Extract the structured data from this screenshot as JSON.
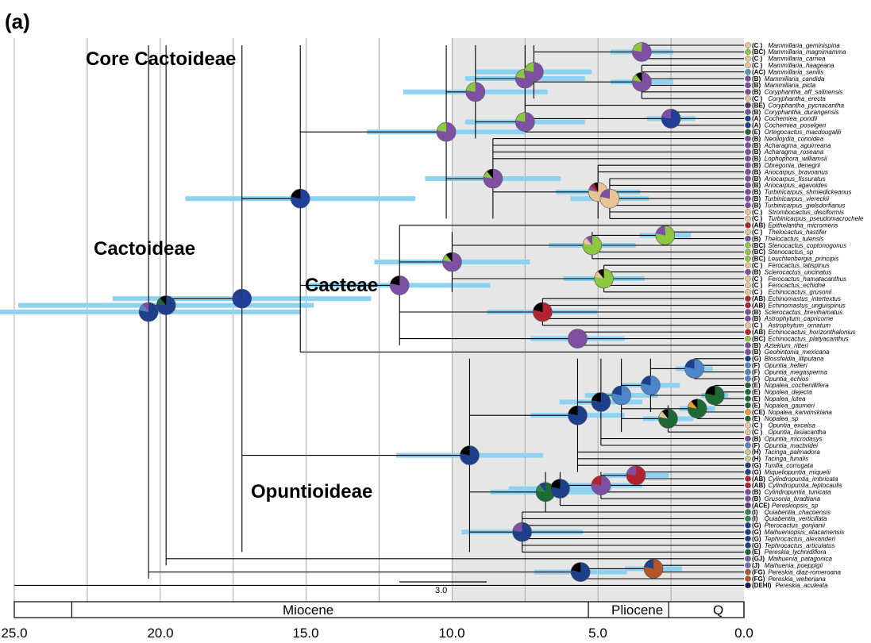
{
  "panel_label": "(a)",
  "clade_labels": [
    "Core Cactoideae",
    "Cactoideae",
    "Cacteae",
    "Opuntioideae"
  ],
  "timescale": {
    "epochs": [
      "Miocene",
      "Pliocene",
      "Q"
    ],
    "epoch_boundaries_ma": [
      23.03,
      5.33,
      2.58,
      0.0
    ],
    "ticks": [
      "25.0",
      "20.0",
      "15.0",
      "10.0",
      "5.0",
      "0.0"
    ],
    "tick_values_ma": [
      25,
      20,
      15,
      10,
      5,
      0
    ],
    "gridlines_ma": [
      25,
      22.5,
      20,
      17.5,
      15,
      12.5,
      10,
      7.5,
      5,
      2.5
    ],
    "shaded_range_ma": [
      10,
      0
    ]
  },
  "scale_bar": {
    "label": "3.0",
    "length_ma": 3.0
  },
  "colors": {
    "A": "#1f3f99",
    "B": "#7e4fa3",
    "C": "#e8c395",
    "E": "#1e6a35",
    "F": "#4a86c8",
    "G": "#1e3f8a",
    "H": "#c9c98a",
    "I": "#2a8a4a",
    "J": "#7a6fb0",
    "D": "#1a1f5c",
    "K": "#8dc63f",
    "M": "#b22230",
    "N": "#b5562a",
    "O": "#f39a2b",
    "X": "#000000",
    "hpd_bar": "#8ed2f2",
    "shade": "#e6e6e6",
    "grid": "#a8a8a8"
  },
  "tips": [
    {
      "code": "(C )",
      "name": "Mammillaria_geminispina",
      "color": "#e8c395"
    },
    {
      "code": "(BC)",
      "name": "Mammillaria_magnimamma",
      "color": "#8dc63f"
    },
    {
      "code": "(C )",
      "name": "Mammillaria_carnea",
      "color": "#e8c395"
    },
    {
      "code": "(C )",
      "name": "Mammillaria_haageana",
      "color": "#e8c395"
    },
    {
      "code": "(AC)",
      "name": "Mammillaria_senilis",
      "color": "#4aa0a0"
    },
    {
      "code": "(B)",
      "name": "Mammillaria_candida",
      "color": "#7e4fa3"
    },
    {
      "code": "(B)",
      "name": "Mammillaria_picta",
      "color": "#7e4fa3"
    },
    {
      "code": "(B)",
      "name": "Coryphantha_aff_salinensis",
      "color": "#7e4fa3"
    },
    {
      "code": "(C )",
      "name": "Coryphantha_erecta",
      "color": "#e8c395"
    },
    {
      "code": "(BE)",
      "name": "Coryphantha_pycnacantha",
      "color": "#5a3a6a"
    },
    {
      "code": "(B)",
      "name": "Coryphantha_durangensis",
      "color": "#7e4fa3"
    },
    {
      "code": "(A)",
      "name": "Cochemiea_pondii",
      "color": "#1f3f99"
    },
    {
      "code": "(A)",
      "name": "Cochemiea_poselgeri",
      "color": "#1f3f99"
    },
    {
      "code": "(E)",
      "name": "Ortegocactus_macdougallii",
      "color": "#1e6a35"
    },
    {
      "code": "(B)",
      "name": "Neolloydia_conoidea",
      "color": "#7e4fa3"
    },
    {
      "code": "(B)",
      "name": "Acharagma_aguirreana",
      "color": "#7e4fa3"
    },
    {
      "code": "(B)",
      "name": "Acharagma_roseana",
      "color": "#7e4fa3"
    },
    {
      "code": "(B)",
      "name": "Lophophora_williamsii",
      "color": "#7e4fa3"
    },
    {
      "code": "(B)",
      "name": "Obregonia_denegrii",
      "color": "#7e4fa3"
    },
    {
      "code": "(B)",
      "name": "Ariocarpus_bravoanus",
      "color": "#7e4fa3"
    },
    {
      "code": "(B)",
      "name": "Ariocarpus_fissuratus",
      "color": "#7e4fa3"
    },
    {
      "code": "(B)",
      "name": "Ariocarpus_agavoides",
      "color": "#7e4fa3"
    },
    {
      "code": "(B)",
      "name": "Turbinicarpus_shmiedickeanus",
      "color": "#7e4fa3"
    },
    {
      "code": "(B)",
      "name": "Turbinicarpus_viereckii",
      "color": "#7e4fa3"
    },
    {
      "code": "(B)",
      "name": "Turbinicarpus_gielsdorfianus",
      "color": "#7e4fa3"
    },
    {
      "code": "(C )",
      "name": "Strombocactus_disciformis",
      "color": "#e8c395"
    },
    {
      "code": "(C )",
      "name": "Turbinicarpus_pseudomacrochele",
      "color": "#e8c395"
    },
    {
      "code": "(AB)",
      "name": "Epithelantha_micromeris",
      "color": "#b22230"
    },
    {
      "code": "(C )",
      "name": "Thelocactus_hastifer",
      "color": "#e8c395"
    },
    {
      "code": "(B)",
      "name": "Thelocactus_tulensis",
      "color": "#7e4fa3"
    },
    {
      "code": "(BC)",
      "name": "Stenocactus_coptonogonus",
      "color": "#8dc63f"
    },
    {
      "code": "(BC)",
      "name": "Stenocactus_sp",
      "color": "#8dc63f"
    },
    {
      "code": "(BC)",
      "name": "Leuchtenbergia_principis",
      "color": "#8dc63f"
    },
    {
      "code": "(C )",
      "name": "Ferocactus_latispinus",
      "color": "#e8c395"
    },
    {
      "code": "(B)",
      "name": "Sclerocactus_uncinatus",
      "color": "#7e4fa3"
    },
    {
      "code": "(C )",
      "name": "Ferocactus_hamatacanthus",
      "color": "#e8c395"
    },
    {
      "code": "(C )",
      "name": "Ferocactus_echidne",
      "color": "#e8c395"
    },
    {
      "code": "(C )",
      "name": "Echinocactus_grusonii",
      "color": "#e8c395"
    },
    {
      "code": "(AB)",
      "name": "Echinomastus_intertextus",
      "color": "#b22230"
    },
    {
      "code": "(AB)",
      "name": "Echinomastus_unguispinus",
      "color": "#b22230"
    },
    {
      "code": "(B)",
      "name": "Sclerocactus_brevihamatus",
      "color": "#7e4fa3"
    },
    {
      "code": "(B)",
      "name": "Astrophytum_capricorne",
      "color": "#7e4fa3"
    },
    {
      "code": "(C )",
      "name": "Astrophytum_ornatum",
      "color": "#e8c395"
    },
    {
      "code": "(AB)",
      "name": "Echinocactus_horizonthalonius",
      "color": "#b22230"
    },
    {
      "code": "(BC)",
      "name": "Echinocactus_platyacanthus",
      "color": "#8dc63f"
    },
    {
      "code": "(B)",
      "name": "Aztekium_ritteri",
      "color": "#7e4fa3"
    },
    {
      "code": "(B)",
      "name": "Geohintonia_mexicana",
      "color": "#7e4fa3"
    },
    {
      "code": "(G)",
      "name": "Blossfeldia_liliputana",
      "color": "#1e3f8a"
    },
    {
      "code": "(F)",
      "name": "Opuntia_helleri",
      "color": "#4a86c8"
    },
    {
      "code": "(F)",
      "name": "Opuntia_megasperma",
      "color": "#4a86c8"
    },
    {
      "code": "(F)",
      "name": "Opuntia_echios",
      "color": "#4a86c8"
    },
    {
      "code": "(E)",
      "name": "Nopalea_cochenillifera",
      "color": "#1e6a35"
    },
    {
      "code": "(E)",
      "name": "Nopalea_dejecta",
      "color": "#1e6a35"
    },
    {
      "code": "(E)",
      "name": "Nopalea_lutea",
      "color": "#1e6a35"
    },
    {
      "code": "(E)",
      "name": "Nopalea_gaumeri",
      "color": "#1e6a35"
    },
    {
      "code": "(CE)",
      "name": "Nopalea_karwinskiana",
      "color": "#f39a2b"
    },
    {
      "code": "(E)",
      "name": "Nopalea_sp",
      "color": "#1e6a35"
    },
    {
      "code": "(C )",
      "name": "Opuntia_excelsa",
      "color": "#e8c395"
    },
    {
      "code": "(C )",
      "name": "Opuntia_lasiacantha",
      "color": "#e8c395"
    },
    {
      "code": "(B)",
      "name": "Opuntia_microdasys",
      "color": "#7e4fa3"
    },
    {
      "code": "(F)",
      "name": "Opuntia_macbridei",
      "color": "#4a86c8"
    },
    {
      "code": "(H)",
      "name": "Tacinga_palmadora",
      "color": "#c9c98a"
    },
    {
      "code": "(H)",
      "name": "Tacinga_funalis",
      "color": "#c9c98a"
    },
    {
      "code": "(G)",
      "name": "Tunilla_corrugata",
      "color": "#1e3f8a"
    },
    {
      "code": "(G)",
      "name": "Miqueliopuntia_miquelii",
      "color": "#1e3f8a"
    },
    {
      "code": "(AB)",
      "name": "Cylindropuntia_imbricata",
      "color": "#b22230"
    },
    {
      "code": "(AB)",
      "name": "Cylindropuntia_leptocaulis",
      "color": "#b22230"
    },
    {
      "code": "(B)",
      "name": "Cylindropuntia_tunicata",
      "color": "#7e4fa3"
    },
    {
      "code": "(B)",
      "name": "Grusonia_bradtiana",
      "color": "#7e4fa3"
    },
    {
      "code": "(ACE)",
      "name": "Pereskiopsis_sp",
      "color": "#6a3a8a"
    },
    {
      "code": "(I)",
      "name": "Quiabentia_chacoensis",
      "color": "#2a8a4a"
    },
    {
      "code": "(I)",
      "name": "Quiabentia_verticillata",
      "color": "#2a8a4a"
    },
    {
      "code": "(G)",
      "name": "Pterocactus_gonjianii",
      "color": "#1e3f8a"
    },
    {
      "code": "(G)",
      "name": "Maihueniopsis_atacamensis",
      "color": "#1e3f8a"
    },
    {
      "code": "(G)",
      "name": "Tephrocactus_alexanderi",
      "color": "#1e3f8a"
    },
    {
      "code": "(G)",
      "name": "Tephrocactus_articulatus",
      "color": "#1e3f8a"
    },
    {
      "code": "(E)",
      "name": "Pereskia_lychnidiflora",
      "color": "#1e6a35"
    },
    {
      "code": "(GJ)",
      "name": "Maihuenia_patagonica",
      "color": "#6a6aa8"
    },
    {
      "code": "(J)",
      "name": "Maihuenia_poeppigii",
      "color": "#7a6fb0"
    },
    {
      "code": "(FG)",
      "name": "Pereskia_diaz-romeroana",
      "color": "#b5562a"
    },
    {
      "code": "(FG)",
      "name": "Pereskia_weberiana",
      "color": "#b5562a"
    },
    {
      "code": "(DEHI)",
      "name": "Pereskia_aculeata",
      "color": "#1a1f5c"
    }
  ],
  "nodes": [
    {
      "age": 20.4,
      "colors": [
        "#1e3f8a",
        "#4a86c8",
        "#7e4fa3"
      ]
    },
    {
      "age": 19.8,
      "colors": [
        "#1e3f8a",
        "#1e6a35",
        "#000000"
      ]
    },
    {
      "age": 17.2,
      "colors": [
        "#1f3f99",
        "#1e3f8a"
      ]
    },
    {
      "age": 15.2,
      "colors": [
        "#1f3f99",
        "#000000"
      ]
    },
    {
      "age": 11.8,
      "colors": [
        "#7e4fa3",
        "#000000"
      ]
    },
    {
      "age": 10.2,
      "colors": [
        "#7e4fa3",
        "#8dc63f"
      ]
    },
    {
      "age": 10.0,
      "colors": [
        "#7e4fa3",
        "#8dc63f",
        "#000000"
      ]
    },
    {
      "age": 9.2,
      "colors": [
        "#7e4fa3",
        "#8dc63f"
      ]
    },
    {
      "age": 8.6,
      "colors": [
        "#7e4fa3",
        "#8dc63f",
        "#000000"
      ]
    },
    {
      "age": 7.5,
      "colors": [
        "#7e4fa3",
        "#8dc63f"
      ]
    },
    {
      "age": 7.5,
      "colors": [
        "#7e4fa3",
        "#8dc63f"
      ]
    },
    {
      "age": 7.2,
      "colors": [
        "#7e4fa3",
        "#8dc63f"
      ]
    },
    {
      "age": 6.9,
      "colors": [
        "#b22230",
        "#000000"
      ]
    },
    {
      "age": 5.7,
      "colors": [
        "#7e4fa3"
      ]
    },
    {
      "age": 5.2,
      "colors": [
        "#8dc63f",
        "#e8c395",
        "#7e4fa3"
      ]
    },
    {
      "age": 5.0,
      "colors": [
        "#e8c395",
        "#7e4fa3",
        "#b22230",
        "#000000"
      ]
    },
    {
      "age": 4.8,
      "colors": [
        "#8dc63f",
        "#e8c395",
        "#000000"
      ]
    },
    {
      "age": 4.6,
      "colors": [
        "#e8c395",
        "#7e4fa3"
      ]
    },
    {
      "age": 3.5,
      "colors": [
        "#7e4fa3",
        "#8dc63f",
        "#000000"
      ]
    },
    {
      "age": 3.5,
      "colors": [
        "#7e4fa3",
        "#8dc63f"
      ]
    },
    {
      "age": 2.7,
      "colors": [
        "#8dc63f",
        "#7e4fa3"
      ]
    },
    {
      "age": 2.5,
      "colors": [
        "#1f3f99",
        "#7e4fa3"
      ]
    },
    {
      "age": 9.4,
      "colors": [
        "#1e3f8a",
        "#000000"
      ]
    },
    {
      "age": 7.6,
      "colors": [
        "#1e3f8a",
        "#7e4fa3"
      ]
    },
    {
      "age": 5.7,
      "colors": [
        "#1e3f8a",
        "#000000"
      ]
    },
    {
      "age": 4.9,
      "colors": [
        "#1e3f8a",
        "#000000"
      ]
    },
    {
      "age": 4.2,
      "colors": [
        "#4a86c8",
        "#1e3f8a"
      ]
    },
    {
      "age": 3.2,
      "colors": [
        "#4a86c8",
        "#1e3f8a"
      ]
    },
    {
      "age": 1.7,
      "colors": [
        "#4a86c8",
        "#1e3f8a"
      ]
    },
    {
      "age": 1.0,
      "colors": [
        "#1e6a35",
        "#000000"
      ]
    },
    {
      "age": 1.6,
      "colors": [
        "#1e6a35",
        "#f39a2b",
        "#000000"
      ]
    },
    {
      "age": 2.6,
      "colors": [
        "#1e6a35",
        "#e8c395",
        "#000000"
      ]
    },
    {
      "age": 6.8,
      "colors": [
        "#1e6a35",
        "#2a8a4a",
        "#1e3f8a"
      ]
    },
    {
      "age": 6.3,
      "colors": [
        "#1e3f8a",
        "#000000"
      ]
    },
    {
      "age": 4.9,
      "colors": [
        "#7e4fa3",
        "#b22230"
      ]
    },
    {
      "age": 3.7,
      "colors": [
        "#b22230",
        "#7e4fa3"
      ]
    },
    {
      "age": 5.6,
      "colors": [
        "#1e3f8a",
        "#000000"
      ]
    },
    {
      "age": 3.1,
      "colors": [
        "#b5562a",
        "#1e3f8a"
      ]
    }
  ]
}
